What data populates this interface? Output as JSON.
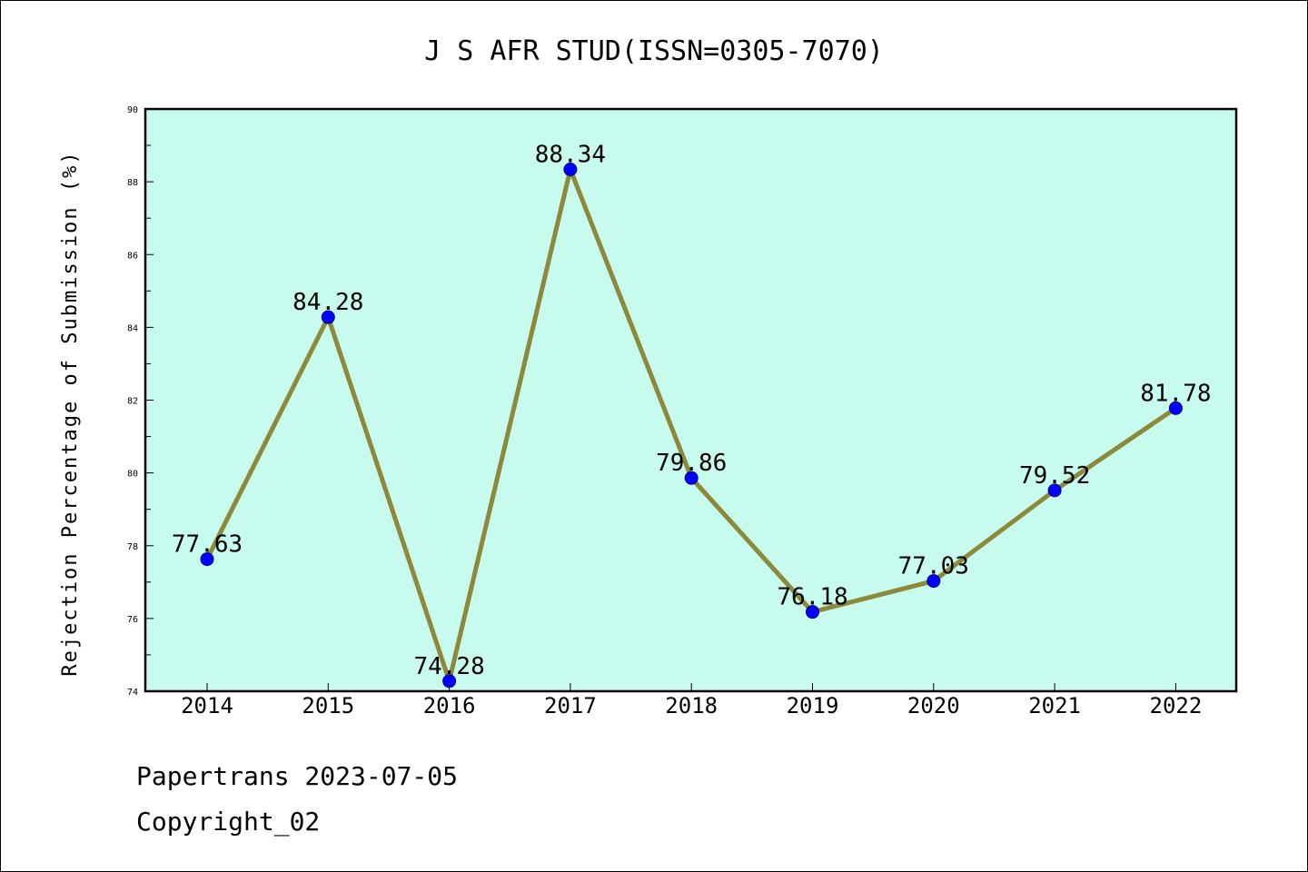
{
  "chart_data": {
    "type": "line",
    "title": "J S AFR STUD(ISSN=0305-7070)",
    "xlabel": "",
    "ylabel": "Rejection Percentage of Submission (%)",
    "x": [
      "2014",
      "2015",
      "2016",
      "2017",
      "2018",
      "2019",
      "2020",
      "2021",
      "2022"
    ],
    "series": [
      {
        "values": [
          77.63,
          84.28,
          74.28,
          88.34,
          79.86,
          76.18,
          77.03,
          79.52,
          81.78
        ],
        "labels": [
          "77.63",
          "84.28",
          "74.28",
          "88.34",
          "79.86",
          "76.18",
          "77.03",
          "79.52",
          "81.78"
        ]
      }
    ],
    "ylim": [
      74,
      90
    ],
    "yticks": [
      "74",
      "76",
      "78",
      "80",
      "82",
      "84",
      "86",
      "88",
      "90"
    ],
    "grid": false,
    "colors": {
      "plot_background": "#c7fbee",
      "line": "#8c8a3a",
      "marker": "#0000ff"
    }
  },
  "footer": {
    "line1": "Papertrans 2023-07-05",
    "line2": "Copyright_02"
  }
}
